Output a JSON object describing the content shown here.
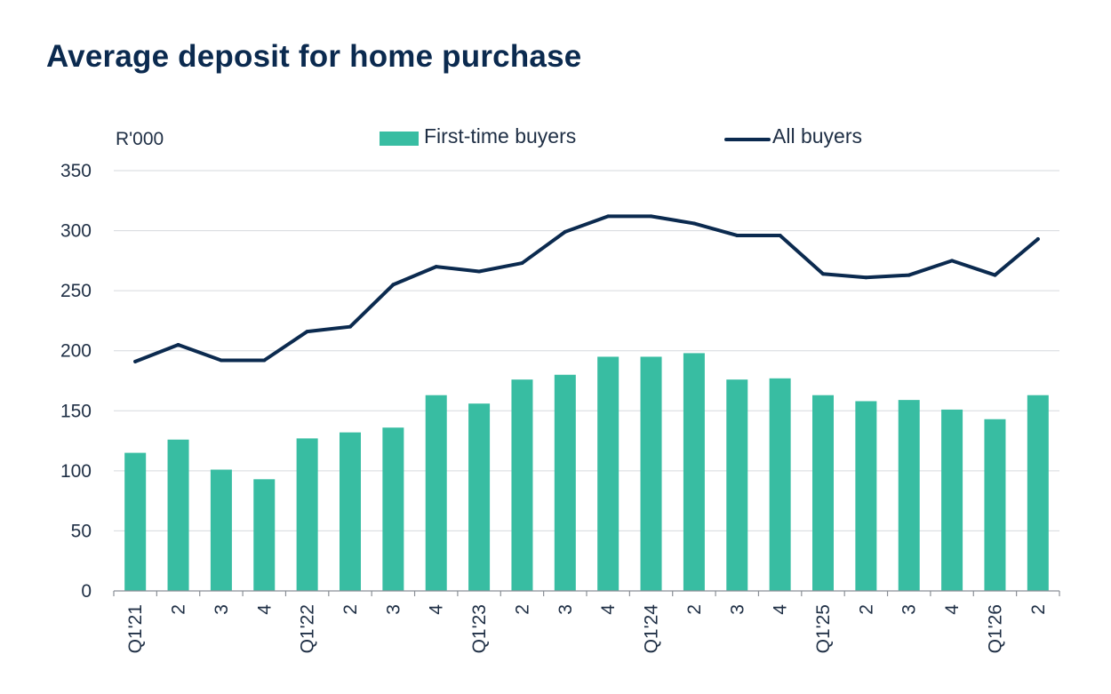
{
  "title": "Average deposit for home purchase",
  "chart_data": {
    "type": "bar",
    "unit_label": "R'000",
    "ylim": [
      0,
      350
    ],
    "yticks": [
      0,
      50,
      100,
      150,
      200,
      250,
      300,
      350
    ],
    "grid": true,
    "legend_position": "top",
    "categories": [
      "Q1'21",
      "2",
      "3",
      "4",
      "Q1'22",
      "2",
      "3",
      "4",
      "Q1'23",
      "2",
      "3",
      "4",
      "Q1'24",
      "2",
      "3",
      "4",
      "Q1'25",
      "2",
      "3",
      "4",
      "Q1'26",
      "2"
    ],
    "series": [
      {
        "name": "First-time buyers",
        "type": "bar",
        "color": "#38bda2",
        "values": [
          115,
          126,
          101,
          93,
          127,
          132,
          136,
          163,
          156,
          176,
          180,
          195,
          195,
          198,
          176,
          177,
          163,
          158,
          159,
          151,
          143,
          163
        ]
      },
      {
        "name": "All buyers",
        "type": "line",
        "color": "#0b2a4f",
        "values": [
          191,
          205,
          192,
          192,
          216,
          220,
          255,
          270,
          266,
          273,
          299,
          312,
          312,
          306,
          296,
          296,
          264,
          261,
          263,
          275,
          263,
          293
        ]
      }
    ]
  }
}
